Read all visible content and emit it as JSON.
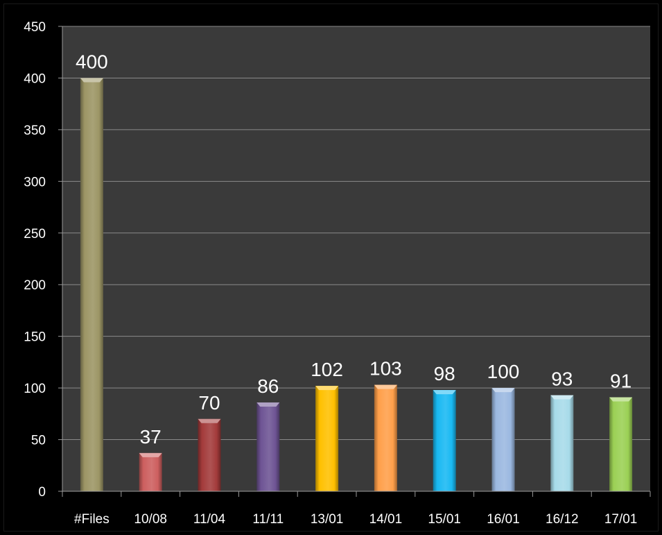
{
  "chart_data": {
    "type": "bar",
    "categories": [
      "#Files",
      "10/08",
      "11/04",
      "11/11",
      "13/01",
      "14/01",
      "15/01",
      "16/01",
      "16/12",
      "17/01"
    ],
    "values": [
      400,
      37,
      70,
      86,
      102,
      103,
      98,
      100,
      93,
      91
    ],
    "data_labels": [
      "400",
      "37",
      "70",
      "86",
      "102",
      "103",
      "98",
      "100",
      "93",
      "91"
    ],
    "bar_colors": [
      "#9c9565",
      "#cd5f5f",
      "#a33b3b",
      "#6e5494",
      "#ffc000",
      "#ff9f4a",
      "#19b9f2",
      "#9bb8e0",
      "#a7dbe9",
      "#9bd055"
    ],
    "ylim": [
      0,
      450
    ],
    "yticks": [
      0,
      50,
      100,
      150,
      200,
      250,
      300,
      350,
      400,
      450
    ],
    "ytick_labels": [
      "0",
      "50",
      "100",
      "150",
      "200",
      "250",
      "300",
      "350",
      "400",
      "450"
    ],
    "grid": true,
    "legend": "none",
    "plot_background": "#3a3a3a",
    "page_background": "#000000",
    "gridline_color": "#8a8a8a",
    "title": "",
    "xlabel": "",
    "ylabel": ""
  }
}
